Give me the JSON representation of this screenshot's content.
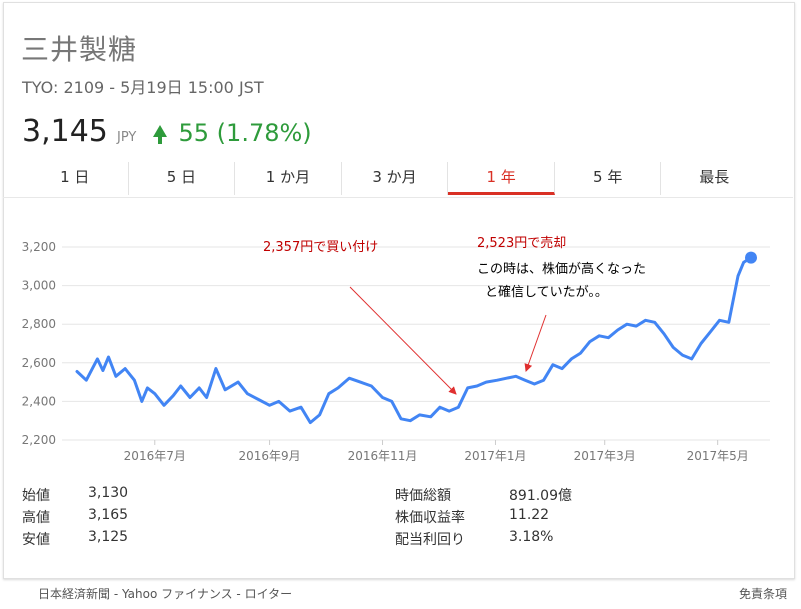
{
  "header": {
    "title": "三井製糖",
    "subtitle": "TYO: 2109 - 5月19日 15:00 JST",
    "price": "3,145",
    "currency": "JPY",
    "change": "55 (1.78%)",
    "change_color": "#2e9b3b"
  },
  "tabs": [
    {
      "label": "1 日"
    },
    {
      "label": "5 日"
    },
    {
      "label": "1 か月"
    },
    {
      "label": "3 か月"
    },
    {
      "label": "1 年"
    },
    {
      "label": "5 年"
    },
    {
      "label": "最長"
    }
  ],
  "active_tab": "1 年",
  "accent_color": "#d93025",
  "line_color": "#4285f4",
  "annotations": {
    "buy": "2,357円で買い付け",
    "sell": "2,523円で売却",
    "comment_line1": "この時は、株価が高くなった",
    "comment_line2": "と確信していたが。。"
  },
  "stats_left": [
    {
      "label": "始値",
      "value": "3,130"
    },
    {
      "label": "高値",
      "value": "3,165"
    },
    {
      "label": "安値",
      "value": "3,125"
    }
  ],
  "stats_right": [
    {
      "label": "時価総額",
      "value": "891.09億"
    },
    {
      "label": "株価収益率",
      "value": "11.22"
    },
    {
      "label": "配当利回り",
      "value": "3.18%"
    }
  ],
  "footer": {
    "sources": "日本経済新聞 - Yahoo ファイナンス - ロイター",
    "disclaimer": "免責条項"
  },
  "chart_data": {
    "type": "line",
    "ylim": [
      2200,
      3200
    ],
    "yticks": [
      2200,
      2400,
      2600,
      2800,
      3000,
      3200
    ],
    "ytick_labels": [
      "2,200",
      "2,400",
      "2,600",
      "2,800",
      "3,000",
      "3,200"
    ],
    "xticks": [
      "2016-07-01",
      "2016-09-01",
      "2016-11-01",
      "2017-01-01",
      "2017-03-01",
      "2017-05-01"
    ],
    "xtick_labels": [
      "2016年7月",
      "2016年9月",
      "2016年11月",
      "2017年1月",
      "2017年3月",
      "2017年5月"
    ],
    "xlim": [
      "2016-05-20",
      "2017-05-19"
    ],
    "series": [
      {
        "points": [
          [
            "2016-05-20",
            2555
          ],
          [
            "2016-05-25",
            2510
          ],
          [
            "2016-05-31",
            2620
          ],
          [
            "2016-06-03",
            2560
          ],
          [
            "2016-06-06",
            2630
          ],
          [
            "2016-06-10",
            2530
          ],
          [
            "2016-06-15",
            2570
          ],
          [
            "2016-06-20",
            2510
          ],
          [
            "2016-06-24",
            2400
          ],
          [
            "2016-06-27",
            2470
          ],
          [
            "2016-07-01",
            2440
          ],
          [
            "2016-07-06",
            2380
          ],
          [
            "2016-07-11",
            2430
          ],
          [
            "2016-07-15",
            2480
          ],
          [
            "2016-07-20",
            2420
          ],
          [
            "2016-07-25",
            2470
          ],
          [
            "2016-07-29",
            2420
          ],
          [
            "2016-08-03",
            2570
          ],
          [
            "2016-08-08",
            2460
          ],
          [
            "2016-08-15",
            2500
          ],
          [
            "2016-08-20",
            2440
          ],
          [
            "2016-08-26",
            2410
          ],
          [
            "2016-09-01",
            2380
          ],
          [
            "2016-09-06",
            2400
          ],
          [
            "2016-09-12",
            2350
          ],
          [
            "2016-09-18",
            2370
          ],
          [
            "2016-09-23",
            2290
          ],
          [
            "2016-09-28",
            2330
          ],
          [
            "2016-10-03",
            2440
          ],
          [
            "2016-10-08",
            2470
          ],
          [
            "2016-10-14",
            2520
          ],
          [
            "2016-10-20",
            2500
          ],
          [
            "2016-10-26",
            2480
          ],
          [
            "2016-11-01",
            2420
          ],
          [
            "2016-11-06",
            2400
          ],
          [
            "2016-11-11",
            2310
          ],
          [
            "2016-11-16",
            2300
          ],
          [
            "2016-11-21",
            2330
          ],
          [
            "2016-11-27",
            2320
          ],
          [
            "2016-12-02",
            2370
          ],
          [
            "2016-12-07",
            2350
          ],
          [
            "2016-12-12",
            2370
          ],
          [
            "2016-12-17",
            2470
          ],
          [
            "2016-12-22",
            2480
          ],
          [
            "2016-12-27",
            2500
          ],
          [
            "2017-01-02",
            2510
          ],
          [
            "2017-01-07",
            2520
          ],
          [
            "2017-01-12",
            2530
          ],
          [
            "2017-01-17",
            2510
          ],
          [
            "2017-01-22",
            2490
          ],
          [
            "2017-01-27",
            2510
          ],
          [
            "2017-02-01",
            2590
          ],
          [
            "2017-02-06",
            2570
          ],
          [
            "2017-02-11",
            2620
          ],
          [
            "2017-02-16",
            2650
          ],
          [
            "2017-02-21",
            2710
          ],
          [
            "2017-02-26",
            2740
          ],
          [
            "2017-03-03",
            2730
          ],
          [
            "2017-03-08",
            2770
          ],
          [
            "2017-03-13",
            2800
          ],
          [
            "2017-03-18",
            2790
          ],
          [
            "2017-03-23",
            2820
          ],
          [
            "2017-03-28",
            2810
          ],
          [
            "2017-04-02",
            2750
          ],
          [
            "2017-04-07",
            2680
          ],
          [
            "2017-04-12",
            2640
          ],
          [
            "2017-04-17",
            2620
          ],
          [
            "2017-04-22",
            2700
          ],
          [
            "2017-04-27",
            2760
          ],
          [
            "2017-05-02",
            2820
          ],
          [
            "2017-05-07",
            2810
          ],
          [
            "2017-05-12",
            3050
          ],
          [
            "2017-05-15",
            3120
          ],
          [
            "2017-05-19",
            3145
          ]
        ]
      }
    ]
  }
}
